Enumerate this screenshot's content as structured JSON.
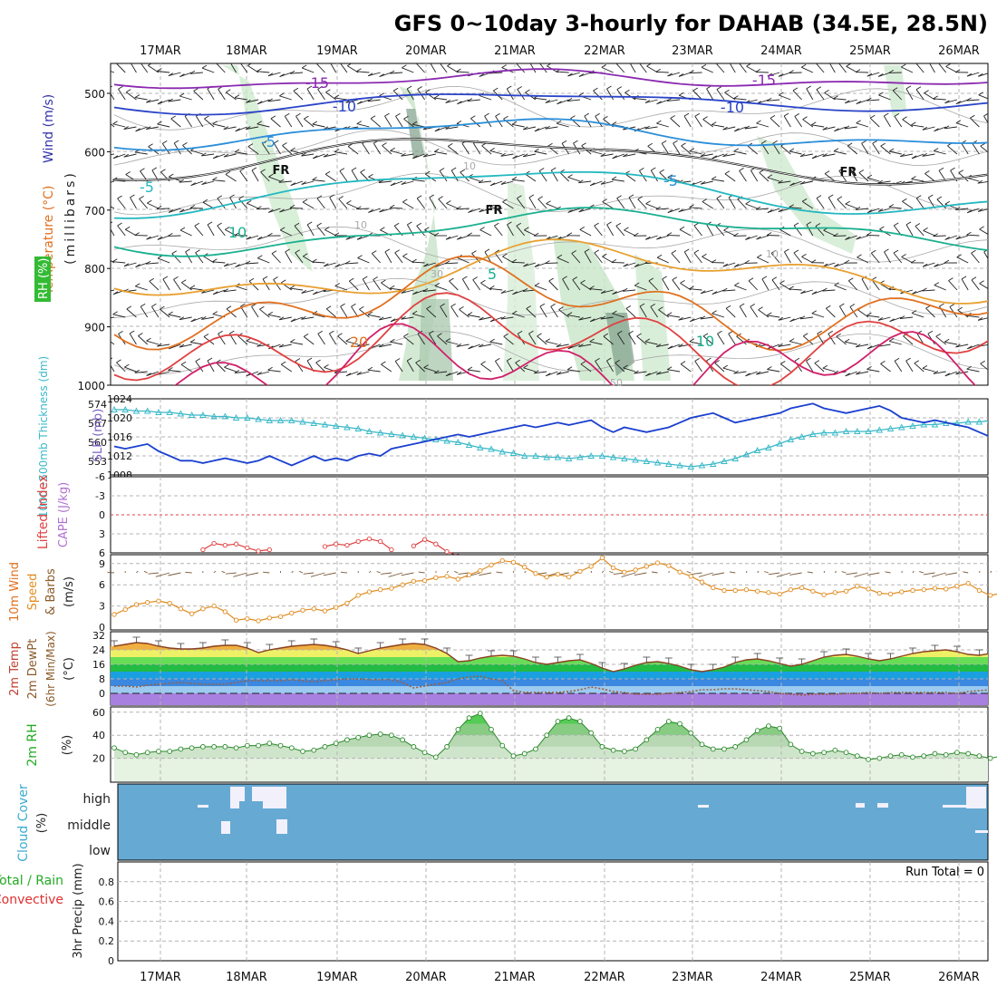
{
  "title": "GFS 0~10day 3-hourly for DAHAB (34.5E, 28.5N)",
  "dates": [
    "17MAR",
    "18MAR",
    "19MAR",
    "20MAR",
    "21MAR",
    "22MAR",
    "23MAR",
    "24MAR",
    "25MAR",
    "26MAR"
  ],
  "colors": {
    "grid": "#b4b4b4",
    "wind_label": "#3333aa",
    "temperature_label": "#e07020",
    "rh_label": "#22aa22",
    "slp": "#1a3fcf",
    "thickness": "#38b8c8",
    "lifted_index": "#e04040",
    "cape": "#b070d0",
    "wind_speed": "#e08c20",
    "dewpoint": "#9a6040",
    "rh_fill": "#44cc44",
    "cloud": "#66aad4",
    "precip_total": "#22aa22",
    "precip_conv": "#e03030"
  },
  "charts": {
    "upper": {
      "labels": {
        "wind": "Wind (m/s)",
        "temperature": "Temperature (°C)",
        "rh": "RH (%)",
        "millibars": "(millibars)"
      },
      "pressure_ticks": [
        "500",
        "600",
        "700",
        "800",
        "900",
        "1000"
      ],
      "contour_labels": [
        "-15",
        "-15",
        "-10",
        "-10",
        "-5",
        "-5",
        "-5",
        "FR",
        "FR",
        "FR",
        "10",
        "10",
        "5",
        "20",
        "10",
        "10",
        "10",
        "30",
        "50"
      ]
    },
    "slp": {
      "labels": {
        "thickness": "1000~500mb Thickness (dm)",
        "slp": "SLP (mb)"
      },
      "left_ticks": [
        "574",
        "567",
        "560",
        "553"
      ],
      "right_ticks": [
        "1024",
        "1020",
        "1016",
        "1012",
        "1008"
      ]
    },
    "cape": {
      "labels": {
        "li": "Lifted Index",
        "cape": "CAPE (J/kg)"
      },
      "ticks": [
        "-6",
        "-3",
        "0",
        "3",
        "6"
      ]
    },
    "wind10": {
      "labels": {
        "line1": "10m Wind",
        "line2": "Speed",
        "line3": "& Barbs",
        "unit": "(m/s)"
      },
      "ticks": [
        "9",
        "6",
        "3",
        "0"
      ]
    },
    "temp2m": {
      "labels": {
        "line1": "2m Temp",
        "line2": "2m DewPt",
        "line3": "(6hr Min/Max)",
        "unit": "(°C)"
      },
      "ticks": [
        "32",
        "24",
        "16",
        "8",
        "0"
      ]
    },
    "rh2m": {
      "labels": {
        "name": "2m RH",
        "unit": "(%)"
      },
      "ticks": [
        "60",
        "40",
        "20"
      ]
    },
    "cloud": {
      "labels": {
        "name": "Cloud Cover",
        "unit": "(%)"
      },
      "levels": [
        "high",
        "middle",
        "low"
      ]
    },
    "precip": {
      "labels": {
        "total": "Total / Rain",
        "conv": "Convective",
        "name": "3hr Precip (mm)"
      },
      "ticks": [
        "0.8",
        "0.6",
        "0.4",
        "0.2",
        "0"
      ],
      "run_total": "Run Total = 0"
    }
  },
  "chart_data": [
    {
      "type": "line",
      "name": "slp",
      "x_unit": "3-hourly steps from 16MAR 12Z",
      "ylim": [
        1008,
        1024
      ],
      "values": [
        1014,
        1013.5,
        1014,
        1014.5,
        1013,
        1012,
        1011,
        1011,
        1010.5,
        1011,
        1011.5,
        1011,
        1010.5,
        1011,
        1012,
        1011,
        1010,
        1011,
        1012,
        1011,
        1011.5,
        1011,
        1012,
        1012.5,
        1012,
        1013.5,
        1014,
        1014.5,
        1015,
        1015.5,
        1016,
        1016.5,
        1016,
        1016.5,
        1017,
        1017.5,
        1018,
        1018.5,
        1018,
        1018.5,
        1019,
        1018.5,
        1019,
        1019.5,
        1018,
        1017,
        1018,
        1017.5,
        1017,
        1017.5,
        1018,
        1019,
        1020,
        1020.5,
        1021,
        1020,
        1019,
        1019.5,
        1020,
        1020.5,
        1021,
        1022,
        1022.5,
        1023,
        1022,
        1021.5,
        1021,
        1021.5,
        1022,
        1022.5,
        1021.5,
        1020,
        1019.5,
        1019,
        1019.5,
        1019,
        1018.5,
        1018,
        1017,
        1016,
        1015,
        1014.5,
        1014,
        1014
      ]
    },
    {
      "type": "line",
      "name": "thickness",
      "ylim": [
        548,
        576
      ],
      "values": [
        572,
        572,
        571.5,
        571.5,
        571,
        571,
        570.5,
        570,
        570,
        569.5,
        569.5,
        569,
        569,
        568.5,
        568,
        568,
        568,
        567.5,
        567,
        566.5,
        566,
        565.5,
        565,
        564,
        563.5,
        563,
        562.5,
        562,
        561.5,
        561,
        560.5,
        560,
        559,
        558,
        557.5,
        556.5,
        556,
        555,
        555,
        554.5,
        554.5,
        554,
        554.5,
        555,
        555,
        554.5,
        554,
        553.5,
        553,
        552.5,
        552,
        551.5,
        551,
        551.5,
        552,
        553,
        554,
        555.5,
        557,
        558,
        559.5,
        561,
        562,
        563,
        563.5,
        563.5,
        564,
        564,
        564,
        564.5,
        565,
        565.5,
        566,
        566.5,
        566.5,
        567,
        567,
        567.5,
        567.5,
        568,
        568,
        568,
        568,
        568.5
      ]
    },
    {
      "type": "line",
      "name": "lifted_index",
      "ylim": [
        -6,
        6
      ],
      "values": [
        null,
        null,
        null,
        null,
        null,
        null,
        null,
        null,
        5.5,
        4.5,
        4.8,
        4.6,
        5.2,
        5.7,
        5.5,
        null,
        null,
        null,
        null,
        5,
        4.6,
        4.8,
        4.2,
        3.8,
        4.2,
        5.5,
        null,
        4.9,
        3.9,
        4.6,
        5.8,
        6.5,
        null,
        null,
        null,
        null,
        null,
        null,
        null,
        null,
        null,
        null,
        null,
        null,
        null,
        null,
        null,
        null,
        null,
        null,
        null,
        null,
        null,
        null,
        null,
        null,
        null,
        null,
        null,
        null,
        null,
        null,
        null,
        null,
        null,
        null,
        null,
        null,
        null,
        null,
        null,
        null,
        null,
        null,
        null,
        null,
        null,
        null,
        null,
        null,
        null,
        null,
        null,
        null
      ]
    },
    {
      "type": "line",
      "name": "wind10_speed",
      "ylim": [
        0,
        10
      ],
      "values": [
        1.8,
        2.5,
        3.2,
        3.5,
        3.7,
        3.4,
        2.6,
        1.9,
        2.6,
        3.0,
        2.2,
        1.0,
        1.2,
        0.9,
        1.3,
        1.5,
        2.0,
        2.4,
        2.6,
        2.3,
        2.8,
        3.4,
        4.5,
        5.0,
        5.3,
        5.5,
        6.0,
        6.5,
        6.6,
        7.0,
        7.2,
        6.8,
        7.4,
        8.0,
        8.8,
        9.4,
        9.2,
        8.5,
        7.6,
        7.1,
        7.5,
        7.1,
        7.9,
        8.6,
        9.8,
        8.4,
        7.8,
        8.1,
        8.6,
        9.1,
        8.7,
        7.8,
        7.2,
        6.4,
        5.6,
        5.2,
        5.2,
        5.3,
        5.1,
        4.9,
        4.7,
        5.3,
        5.6,
        5.1,
        4.6,
        4.9,
        5.1,
        5.8,
        5.4,
        4.8,
        4.7,
        5.0,
        5.2,
        5.3,
        5.5,
        5.4,
        5.8,
        6.2,
        5.2,
        4.5,
        4.8,
        5.0,
        4.7,
        4.7
      ]
    },
    {
      "type": "area",
      "name": "temp2m",
      "ylim": [
        -8,
        34
      ],
      "values": [
        26,
        27,
        28,
        27.5,
        26,
        25,
        24.5,
        24.5,
        25,
        26,
        26.5,
        26.5,
        25,
        22.5,
        24,
        25,
        26,
        26.5,
        27,
        26.5,
        25.5,
        24,
        22,
        23.5,
        25,
        26,
        27,
        27.5,
        27,
        25,
        22,
        17.5,
        18,
        19.5,
        20.5,
        21,
        20.5,
        19,
        17,
        16,
        17,
        18,
        18.5,
        16.5,
        14,
        12,
        13.5,
        15.5,
        17,
        17.5,
        16.5,
        15,
        13,
        12,
        13,
        14.5,
        17,
        18.5,
        19,
        18,
        16.5,
        15,
        16,
        18,
        20,
        21,
        21.5,
        20.5,
        19,
        18,
        19,
        20.5,
        22,
        23,
        23.5,
        24,
        23,
        21.5,
        21,
        22,
        23.5,
        23,
        22,
        21.5
      ]
    },
    {
      "type": "line",
      "name": "dewpoint2m",
      "ylim": [
        -8,
        34
      ],
      "values": [
        4,
        4,
        3.5,
        4.5,
        5,
        5.5,
        6,
        5.5,
        5,
        5,
        5,
        6,
        7,
        7,
        7,
        7,
        7.5,
        7,
        6.5,
        7,
        7.5,
        8,
        8,
        7.5,
        7.5,
        7.5,
        6,
        3,
        4,
        5,
        6,
        8,
        9,
        9.5,
        8,
        7,
        1.5,
        0.5,
        0.5,
        0.5,
        0.5,
        1,
        2,
        3.5,
        2.5,
        1,
        0.5,
        -0.5,
        -0.5,
        -0.5,
        0,
        0.5,
        1,
        2,
        2,
        2.5,
        2.5,
        2,
        1.5,
        1,
        0,
        -0.5,
        -1,
        -0.5,
        -0.5,
        -0.5,
        0,
        0,
        0.5,
        0,
        0.5,
        0.5,
        0.5,
        0.5,
        0.5,
        0.5,
        0,
        1,
        1.5,
        2,
        2,
        2.5,
        2.5,
        2
      ]
    },
    {
      "type": "area",
      "name": "rh2m",
      "ylim": [
        0,
        66
      ],
      "values": [
        29,
        25,
        23,
        25,
        26,
        26,
        28,
        29,
        30,
        30,
        30,
        29,
        31,
        31,
        33,
        31,
        29,
        26,
        27,
        30,
        33,
        36,
        38,
        40,
        41,
        40,
        36,
        30,
        25,
        21,
        30,
        45,
        55,
        59,
        45,
        31,
        22,
        24,
        28,
        40,
        52,
        55,
        52,
        42,
        30,
        27,
        26,
        28,
        36,
        45,
        52,
        50,
        42,
        32,
        28,
        28,
        30,
        36,
        44,
        48,
        46,
        32,
        26,
        24,
        25,
        27,
        25,
        22,
        19,
        20,
        22,
        23,
        21,
        22,
        24,
        23,
        25,
        24,
        22,
        20,
        22,
        25,
        28,
        25
      ]
    },
    {
      "type": "bar",
      "name": "precip_3hr",
      "values": [],
      "ylim": [
        0,
        1
      ]
    }
  ]
}
